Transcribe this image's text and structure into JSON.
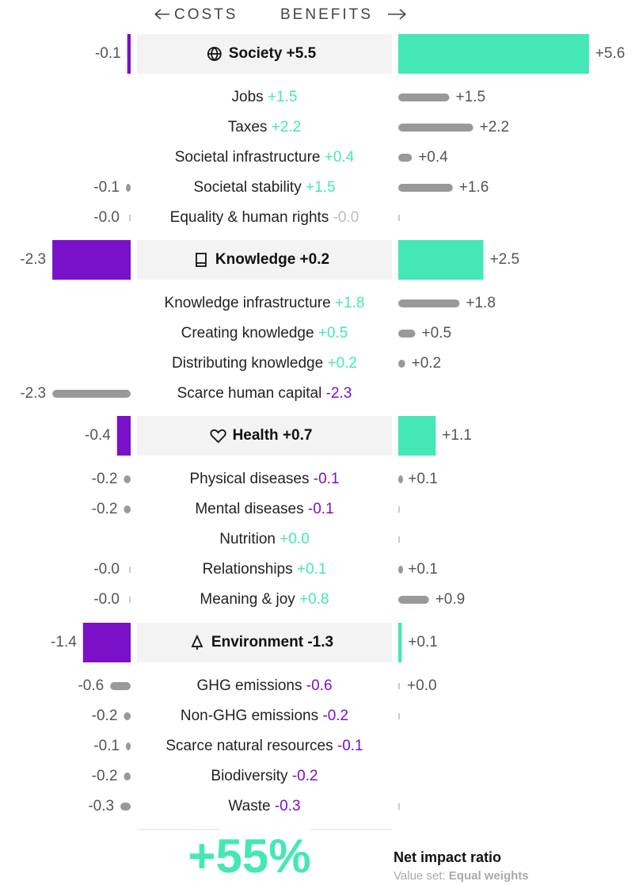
{
  "header": {
    "costs": "COSTS",
    "benefits": "BENEFITS"
  },
  "scale": {
    "colors": {
      "cost": "#7a10c8",
      "benefit": "#43e8b6",
      "item": "#999999",
      "neutral": "#bbbbbb"
    }
  },
  "groups": [
    {
      "name": "Society",
      "net": 5.5,
      "net_label": "+5.5",
      "cost": -0.1,
      "cost_label": "-0.1",
      "benefit": 5.6,
      "benefit_label": "+5.6",
      "items": [
        {
          "name": "Jobs",
          "net": 1.5,
          "net_label": "+1.5",
          "benefit": 1.5,
          "benefit_label": "+1.5"
        },
        {
          "name": "Taxes",
          "net": 2.2,
          "net_label": "+2.2",
          "benefit": 2.2,
          "benefit_label": "+2.2"
        },
        {
          "name": "Societal infrastructure",
          "net": 0.4,
          "net_label": "+0.4",
          "benefit": 0.4,
          "benefit_label": "+0.4"
        },
        {
          "name": "Societal stability",
          "net": 1.5,
          "net_label": "+1.5",
          "cost": -0.1,
          "cost_label": "-0.1",
          "benefit": 1.6,
          "benefit_label": "+1.6"
        },
        {
          "name": "Equality & human rights",
          "net": 0,
          "net_label": "-0.0",
          "cost": 0,
          "cost_label": "-0.0",
          "benefit": 0
        }
      ]
    },
    {
      "name": "Knowledge",
      "net": 0.2,
      "net_label": "+0.2",
      "cost": -2.3,
      "cost_label": "-2.3",
      "benefit": 2.5,
      "benefit_label": "+2.5",
      "items": [
        {
          "name": "Knowledge infrastructure",
          "net": 1.8,
          "net_label": "+1.8",
          "benefit": 1.8,
          "benefit_label": "+1.8"
        },
        {
          "name": "Creating knowledge",
          "net": 0.5,
          "net_label": "+0.5",
          "benefit": 0.5,
          "benefit_label": "+0.5"
        },
        {
          "name": "Distributing knowledge",
          "net": 0.2,
          "net_label": "+0.2",
          "benefit": 0.2,
          "benefit_label": "+0.2"
        },
        {
          "name": "Scarce human capital",
          "net": -2.3,
          "net_label": "-2.3",
          "cost": -2.3,
          "cost_label": "-2.3"
        }
      ]
    },
    {
      "name": "Health",
      "net": 0.7,
      "net_label": "+0.7",
      "cost": -0.4,
      "cost_label": "-0.4",
      "benefit": 1.1,
      "benefit_label": "+1.1",
      "items": [
        {
          "name": "Physical diseases",
          "net": -0.1,
          "net_label": "-0.1",
          "cost": -0.2,
          "cost_label": "-0.2",
          "benefit": 0.1,
          "benefit_label": "+0.1"
        },
        {
          "name": "Mental diseases",
          "net": -0.1,
          "net_label": "-0.1",
          "cost": -0.2,
          "cost_label": "-0.2",
          "benefit": 0
        },
        {
          "name": "Nutrition",
          "net": 0.04,
          "net_label": "+0.0",
          "benefit": 0
        },
        {
          "name": "Relationships",
          "net": 0.1,
          "net_label": "+0.1",
          "cost": 0,
          "cost_label": "-0.0",
          "benefit": 0.1,
          "benefit_label": "+0.1"
        },
        {
          "name": "Meaning & joy",
          "net": 0.8,
          "net_label": "+0.8",
          "cost": 0,
          "cost_label": "-0.0",
          "benefit": 0.9,
          "benefit_label": "+0.9"
        }
      ]
    },
    {
      "name": "Environment",
      "net": -1.3,
      "net_label": "-1.3",
      "cost": -1.4,
      "cost_label": "-1.4",
      "benefit": 0.1,
      "benefit_label": "+0.1",
      "items": [
        {
          "name": "GHG emissions",
          "net": -0.6,
          "net_label": "-0.6",
          "cost": -0.6,
          "cost_label": "-0.6",
          "benefit": 0,
          "benefit_label": "+0.0"
        },
        {
          "name": "Non-GHG emissions",
          "net": -0.2,
          "net_label": "-0.2",
          "cost": -0.2,
          "cost_label": "-0.2",
          "benefit": 0
        },
        {
          "name": "Scarce natural resources",
          "net": -0.1,
          "net_label": "-0.1",
          "cost": -0.1,
          "cost_label": "-0.1"
        },
        {
          "name": "Biodiversity",
          "net": -0.2,
          "net_label": "-0.2",
          "cost": -0.2,
          "cost_label": "-0.2"
        },
        {
          "name": "Waste",
          "net": -0.3,
          "net_label": "-0.3",
          "cost": -0.3,
          "cost_label": "-0.3",
          "benefit": 0
        }
      ]
    }
  ],
  "footer": {
    "ratio": 55,
    "ratio_label": "+55%",
    "title": "Net impact ratio",
    "value_set_label": "Value set:",
    "value_set": "Equal weights"
  }
}
